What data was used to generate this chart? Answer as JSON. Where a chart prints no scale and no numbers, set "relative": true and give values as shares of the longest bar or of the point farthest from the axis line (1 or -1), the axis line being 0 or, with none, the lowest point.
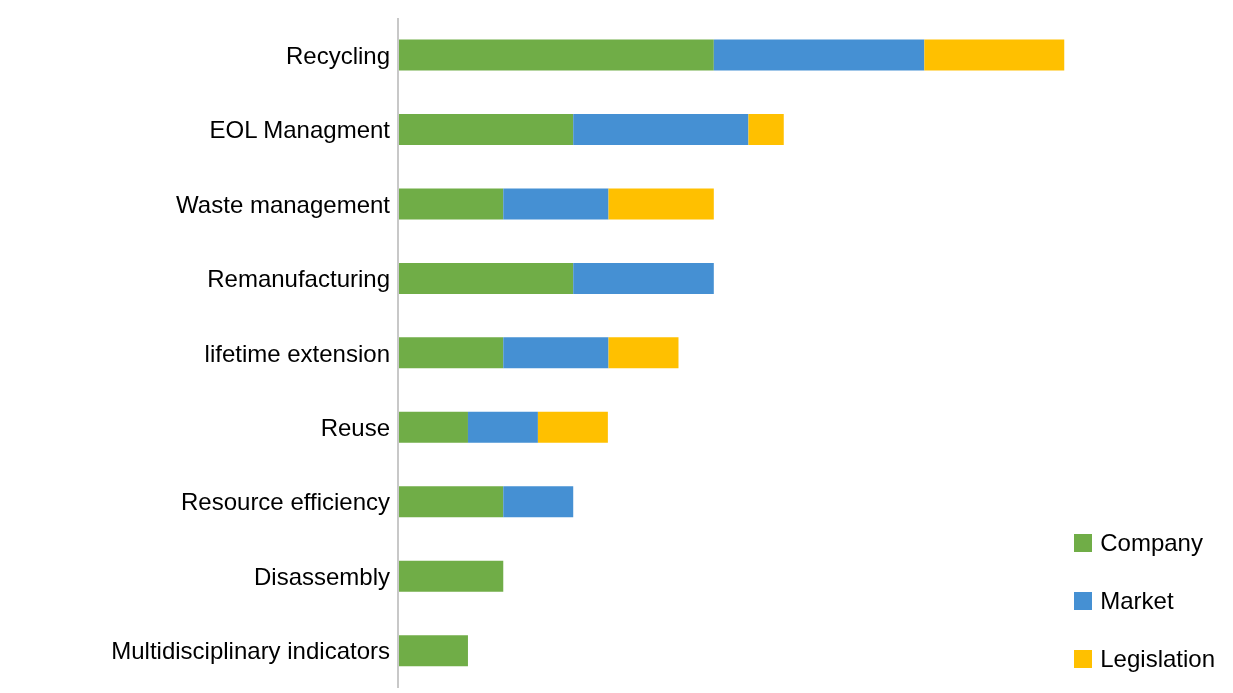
{
  "chart_data": {
    "type": "bar",
    "orientation": "horizontal",
    "stacked": true,
    "relative": true,
    "legend": "bottom right",
    "categories": [
      "Recycling",
      "EOL Managment",
      "Waste management",
      "Remanufacturing",
      "lifetime extension",
      "Reuse",
      "Resource efficiency",
      "Disassembly",
      "Multidisciplinary indicators"
    ],
    "series": [
      {
        "name": "Company",
        "color": "#70ad47",
        "values": [
          0.474,
          0.263,
          0.158,
          0.263,
          0.158,
          0.105,
          0.158,
          0.158,
          0.105
        ]
      },
      {
        "name": "Market",
        "color": "#4590d3",
        "values": [
          0.316,
          0.263,
          0.158,
          0.211,
          0.158,
          0.105,
          0.105,
          null,
          null
        ]
      },
      {
        "name": "Legislation",
        "color": "#ffc000",
        "values": [
          0.21,
          0.053,
          0.158,
          null,
          0.105,
          0.105,
          null,
          null,
          null
        ]
      }
    ]
  }
}
